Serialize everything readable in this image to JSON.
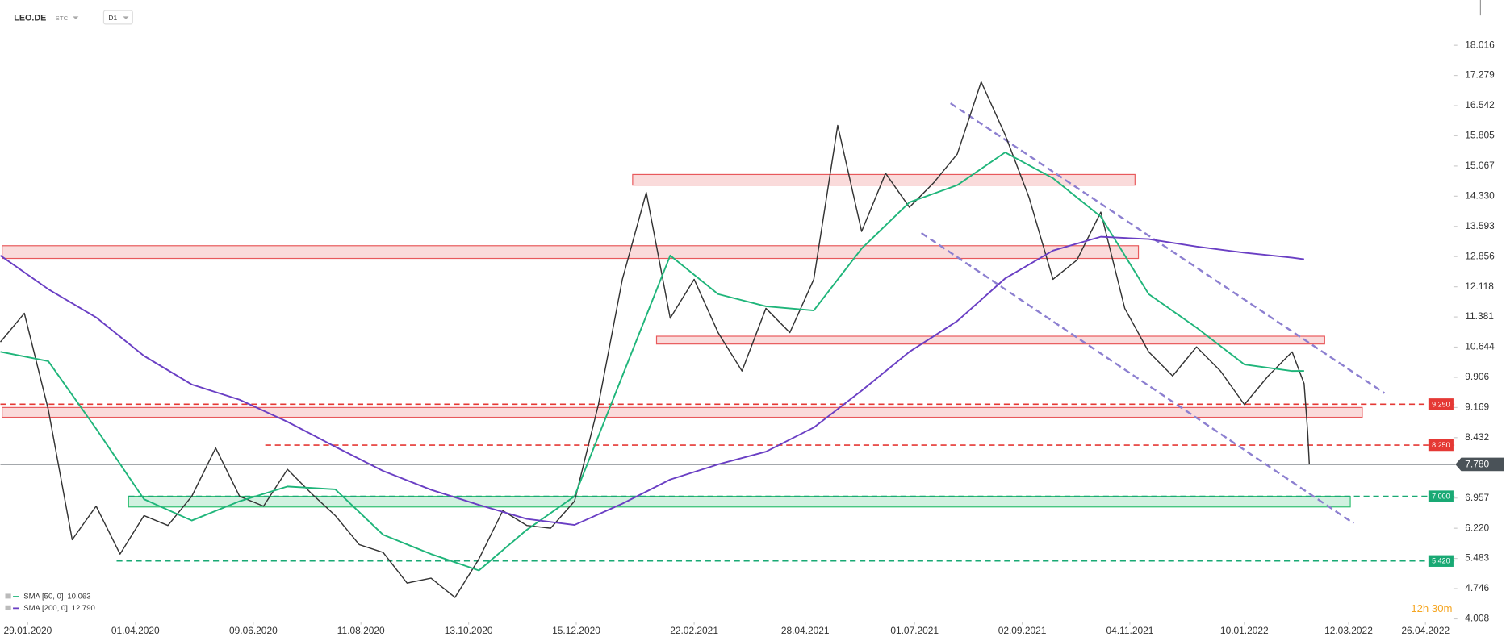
{
  "chart_data": {
    "type": "line",
    "symbol": "LEO.DE",
    "instrument_type": "STC",
    "interval": "D1",
    "countdown": "12h 30m",
    "xlim": [
      "2020-01-13",
      "2022-05-09"
    ],
    "ylim": [
      3.937,
      19.122
    ],
    "xticks": [
      {
        "value": "2020-01-29",
        "label": "29.01.2020"
      },
      {
        "value": "2020-04-01",
        "label": "01.04.2020"
      },
      {
        "value": "2020-06-09",
        "label": "09.06.2020"
      },
      {
        "value": "2020-08-11",
        "label": "11.08.2020"
      },
      {
        "value": "2020-10-13",
        "label": "13.10.2020"
      },
      {
        "value": "2020-12-15",
        "label": "15.12.2020"
      },
      {
        "value": "2021-02-22",
        "label": "22.02.2021"
      },
      {
        "value": "2021-04-28",
        "label": "28.04.2021"
      },
      {
        "value": "2021-07-01",
        "label": "01.07.2021"
      },
      {
        "value": "2021-09-02",
        "label": "02.09.2021"
      },
      {
        "value": "2021-11-04",
        "label": "04.11.2021"
      },
      {
        "value": "2022-01-10",
        "label": "10.01.2022"
      },
      {
        "value": "2022-03-12",
        "label": "12.03.2022"
      },
      {
        "value": "2022-04-26",
        "label": "26.04.2022"
      }
    ],
    "yticks": [
      4.008,
      4.746,
      5.483,
      {
        "value": 6.22,
        "label": "6.220"
      },
      6.957,
      8.432,
      9.169,
      9.906,
      10.644,
      11.381,
      12.118,
      12.856,
      13.593,
      {
        "value": 14.33,
        "label": "14.330"
      },
      15.067,
      15.805,
      16.542,
      17.279,
      18.016
    ],
    "series": [
      {
        "color": "#333333",
        "x": [
          "2020-01-13",
          "2020-01-27",
          "2020-02-10",
          "2020-02-24",
          "2020-03-09",
          "2020-03-23",
          "2020-04-06",
          "2020-04-20",
          "2020-05-04",
          "2020-05-18",
          "2020-06-01",
          "2020-06-15",
          "2020-06-29",
          "2020-07-13",
          "2020-07-27",
          "2020-08-10",
          "2020-08-24",
          "2020-09-07",
          "2020-09-21",
          "2020-10-05",
          "2020-10-19",
          "2020-11-02",
          "2020-11-16",
          "2020-11-30",
          "2020-12-14",
          "2020-12-28",
          "2021-01-11",
          "2021-01-25",
          "2021-02-08",
          "2021-02-22",
          "2021-03-08",
          "2021-03-22",
          "2021-04-05",
          "2021-04-19",
          "2021-05-03",
          "2021-05-17",
          "2021-05-31",
          "2021-06-14",
          "2021-06-28",
          "2021-07-12",
          "2021-07-26",
          "2021-08-09",
          "2021-08-23",
          "2021-09-06",
          "2021-09-20",
          "2021-10-04",
          "2021-10-18",
          "2021-11-01",
          "2021-11-15",
          "2021-11-29",
          "2021-12-13",
          "2021-12-27",
          "2022-01-10",
          "2022-01-24",
          "2022-02-07",
          "2022-02-14",
          "2022-02-16",
          "2022-02-17"
        ],
        "values": [
          10.77,
          11.47,
          9.12,
          5.94,
          6.76,
          5.59,
          6.53,
          6.29,
          7.0,
          8.18,
          7.0,
          6.76,
          7.66,
          7.07,
          6.53,
          5.82,
          5.63,
          4.88,
          5.0,
          4.53,
          5.47,
          6.65,
          6.29,
          6.22,
          6.88,
          9.24,
          12.3,
          14.42,
          11.35,
          12.3,
          11.0,
          10.06,
          11.59,
          11.0,
          12.3,
          16.06,
          13.47,
          14.89,
          14.06,
          14.65,
          15.36,
          17.12,
          15.83,
          14.3,
          12.3,
          12.77,
          13.94,
          11.59,
          10.53,
          9.94,
          10.65,
          10.06,
          9.24,
          9.94,
          10.53,
          9.75,
          8.6,
          7.78
        ]
      },
      {
        "name": "SMA [50, 0]",
        "color": "#1fb57a",
        "legend_value": 10.063,
        "x": [
          "2020-01-13",
          "2020-02-10",
          "2020-03-09",
          "2020-04-06",
          "2020-05-04",
          "2020-06-01",
          "2020-06-29",
          "2020-07-27",
          "2020-08-24",
          "2020-09-21",
          "2020-10-19",
          "2020-11-16",
          "2020-12-14",
          "2021-01-11",
          "2021-02-08",
          "2021-03-08",
          "2021-04-05",
          "2021-05-03",
          "2021-05-31",
          "2021-06-28",
          "2021-07-26",
          "2021-08-23",
          "2021-09-20",
          "2021-10-18",
          "2021-11-15",
          "2021-12-13",
          "2022-01-10",
          "2022-02-07",
          "2022-02-14"
        ],
        "values": [
          10.53,
          10.3,
          8.65,
          6.93,
          6.41,
          6.88,
          7.24,
          7.17,
          6.06,
          5.59,
          5.19,
          6.18,
          7.0,
          9.94,
          12.88,
          11.94,
          11.64,
          11.54,
          13.05,
          14.18,
          14.6,
          15.4,
          14.77,
          13.83,
          11.94,
          11.12,
          10.22,
          10.06,
          10.063
        ]
      },
      {
        "name": "SMA [200, 0]",
        "color": "#6a3fc4",
        "legend_value": {
          "value": 12.79,
          "label": "12.790"
        },
        "x": [
          "2020-01-13",
          "2020-02-10",
          "2020-03-09",
          "2020-04-06",
          "2020-05-04",
          "2020-06-01",
          "2020-06-29",
          "2020-07-27",
          "2020-08-24",
          "2020-09-21",
          "2020-10-19",
          "2020-11-16",
          "2020-12-14",
          "2021-01-11",
          "2021-02-08",
          "2021-03-08",
          "2021-04-05",
          "2021-05-03",
          "2021-05-31",
          "2021-06-28",
          "2021-07-26",
          "2021-08-23",
          "2021-09-20",
          "2021-10-18",
          "2021-11-15",
          "2021-12-13",
          "2022-01-10",
          "2022-02-07",
          "2022-02-14"
        ],
        "values": [
          12.88,
          12.06,
          11.37,
          10.43,
          9.73,
          9.36,
          8.82,
          8.21,
          7.62,
          7.16,
          6.79,
          6.45,
          6.3,
          6.82,
          7.41,
          7.78,
          8.09,
          8.68,
          9.58,
          10.53,
          11.28,
          12.32,
          13.0,
          13.34,
          13.28,
          13.1,
          12.95,
          12.83,
          12.79
        ]
      }
    ],
    "zones": [
      {
        "color": "#e8595c",
        "start": "2021-01-17",
        "end": "2021-11-07",
        "top": 14.86,
        "bottom": 14.6
      },
      {
        "color": "#e8595c",
        "start": "2020-01-14",
        "end": "2021-11-09",
        "top": 13.12,
        "bottom": 12.81
      },
      {
        "color": "#e8595c",
        "start": "2021-01-31",
        "end": "2022-02-26",
        "top": 10.91,
        "bottom": 10.72
      },
      {
        "color": "#e8595c",
        "start": "2020-01-14",
        "end": "2022-03-20",
        "top": 9.17,
        "bottom": 8.93
      },
      {
        "color": "#2fbf71",
        "start": "2020-03-28",
        "end": "2022-03-13",
        "top": 7.0,
        "bottom": 6.74
      }
    ],
    "levels": [
      {
        "value": 9.25,
        "label": "9.250",
        "color": "#e53935",
        "start": "2020-01-13"
      },
      {
        "value": 8.25,
        "label": "8.250",
        "color": "#e53935",
        "start": "2020-06-16"
      },
      {
        "value": 7.0,
        "label": "7.000",
        "color": "#19a974",
        "start": "2020-03-28"
      },
      {
        "value": 5.42,
        "label": "5.420",
        "color": "#19a974",
        "start": "2020-03-21"
      }
    ],
    "last_price": {
      "value": 7.78,
      "label": "7.780",
      "color": "#4a5258"
    },
    "trendlines": [
      {
        "color": "#8c7fd0",
        "start": [
          "2021-07-22",
          16.6
        ],
        "end": [
          "2022-04-02",
          9.52
        ]
      },
      {
        "color": "#8c7fd0",
        "start": [
          "2021-07-05",
          13.43
        ],
        "end": [
          "2022-03-15",
          6.34
        ]
      }
    ]
  }
}
